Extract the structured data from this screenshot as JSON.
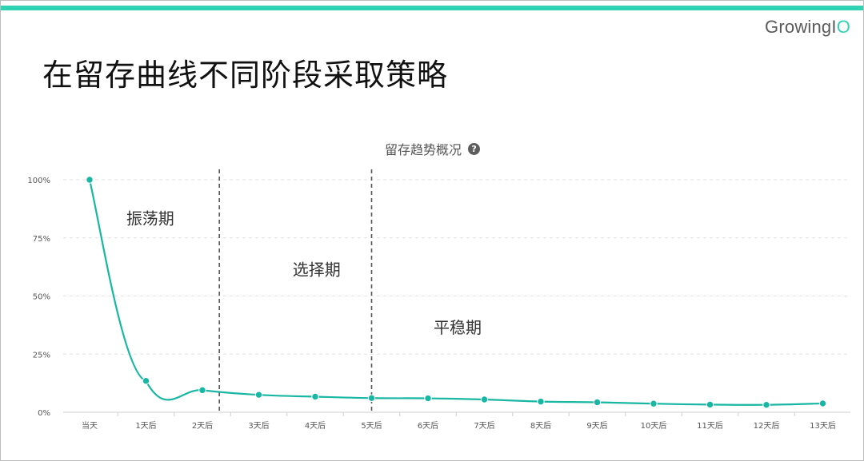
{
  "brand": {
    "text_main": "GrowingI",
    "text_accent": "O"
  },
  "slide": {
    "title": "在留存曲线不同阶段采取策略"
  },
  "chart_header": {
    "title": "留存趋势概况",
    "help_icon_glyph": "?"
  },
  "colors": {
    "accent": "#2fd3b4",
    "line": "#17b7a3",
    "grid": "#e2e2e2",
    "divider": "#555555"
  },
  "chart_data": {
    "type": "line",
    "title": "留存趋势概况",
    "categories": [
      "当天",
      "1天后",
      "2天后",
      "3天后",
      "4天后",
      "5天后",
      "6天后",
      "7天后",
      "8天后",
      "9天后",
      "10天后",
      "11天后",
      "12天后",
      "13天后"
    ],
    "series": [
      {
        "values": [
          100,
          13.5,
          9.5,
          7.5,
          6.7,
          6.1,
          6.0,
          5.5,
          4.6,
          4.3,
          3.7,
          3.3,
          3.2,
          3.8
        ]
      }
    ],
    "ylim": [
      0,
      100
    ],
    "yticks": [
      {
        "value": 0,
        "label": "0%"
      },
      {
        "value": 25,
        "label": "25%"
      },
      {
        "value": 50,
        "label": "50%"
      },
      {
        "value": 75,
        "label": "75%"
      },
      {
        "value": 100,
        "label": "100%"
      }
    ],
    "grid": true,
    "dividers": [
      2.3,
      5
    ],
    "phases": [
      {
        "label": "振荡期",
        "x": 0.65,
        "y": 81
      },
      {
        "label": "选择期",
        "x": 3.6,
        "y": 59
      },
      {
        "label": "平稳期",
        "x": 6.1,
        "y": 34
      }
    ]
  }
}
